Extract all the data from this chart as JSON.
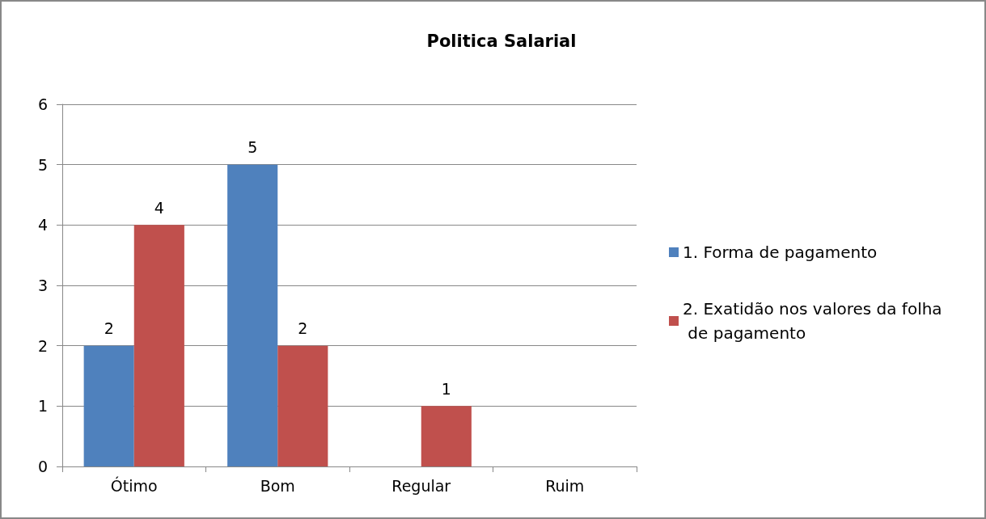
{
  "chart_data": {
    "type": "bar",
    "title": "Politica Salarial",
    "categories": [
      "Ótimo",
      "Bom",
      "Regular",
      "Ruim"
    ],
    "series": [
      {
        "name": "1. Forma de pagamento",
        "color": "#4f81bd",
        "values": [
          2,
          5,
          null,
          null
        ]
      },
      {
        "name": "2. Exatidão nos valores da folha de pagamento",
        "color": "#c0504d",
        "values": [
          4,
          2,
          1,
          null
        ]
      }
    ],
    "ylim": [
      0,
      6
    ],
    "yticks": [
      0,
      1,
      2,
      3,
      4,
      5,
      6
    ],
    "grid": "y",
    "legend": "right",
    "data_labels": true
  }
}
